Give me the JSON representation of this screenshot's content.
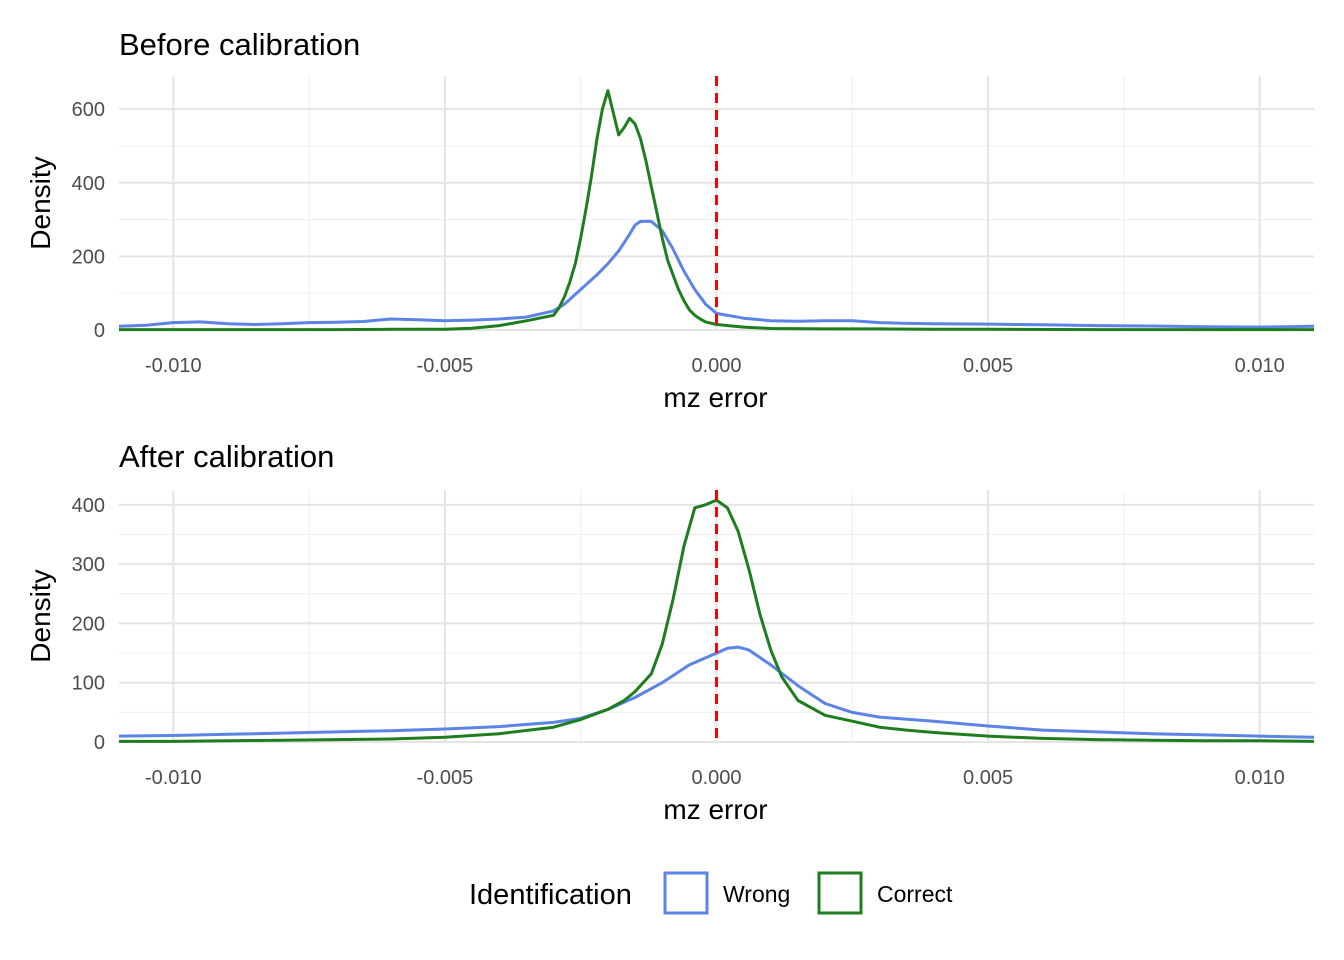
{
  "legend": {
    "title": "Identification",
    "items": [
      {
        "label": "Wrong",
        "color": "#5b84e6"
      },
      {
        "label": "Correct",
        "color": "#1e7d1e"
      }
    ]
  },
  "chart_data": [
    {
      "type": "line",
      "title": "Before calibration",
      "xlabel": "mz error",
      "ylabel": "Density",
      "xlim": [
        -0.011,
        0.011
      ],
      "ylim": [
        0,
        690
      ],
      "xticks": [
        -0.01,
        -0.005,
        0.0,
        0.005,
        0.01
      ],
      "xtick_labels": [
        "-0.010",
        "-0.005",
        "0.000",
        "0.005",
        "0.010"
      ],
      "yticks": [
        0,
        200,
        400,
        600
      ],
      "ytick_labels": [
        "0",
        "200",
        "400",
        "600"
      ],
      "grid": true,
      "reference_line": {
        "x": 0.0,
        "color": "#ff0000",
        "style": "dashed"
      },
      "series": [
        {
          "name": "Wrong",
          "color": "#5b84e6",
          "x": [
            -0.011,
            -0.0105,
            -0.01,
            -0.0095,
            -0.009,
            -0.0085,
            -0.008,
            -0.0075,
            -0.007,
            -0.0065,
            -0.006,
            -0.0055,
            -0.005,
            -0.0045,
            -0.004,
            -0.0035,
            -0.003,
            -0.0028,
            -0.0025,
            -0.0022,
            -0.002,
            -0.0018,
            -0.0016,
            -0.0015,
            -0.0014,
            -0.0012,
            -0.001,
            -0.0008,
            -0.0006,
            -0.0004,
            -0.0002,
            0.0,
            0.0005,
            0.001,
            0.0015,
            0.002,
            0.0025,
            0.003,
            0.0035,
            0.004,
            0.005,
            0.006,
            0.007,
            0.008,
            0.009,
            0.01,
            0.011
          ],
          "y": [
            10,
            13,
            20,
            22,
            17,
            15,
            17,
            20,
            21,
            23,
            30,
            28,
            25,
            27,
            30,
            35,
            52,
            70,
            110,
            150,
            180,
            215,
            260,
            285,
            295,
            295,
            270,
            220,
            160,
            110,
            70,
            45,
            32,
            25,
            24,
            25,
            25,
            20,
            18,
            17,
            16,
            14,
            12,
            11,
            9,
            8,
            10
          ]
        },
        {
          "name": "Correct",
          "color": "#1e7d1e",
          "x": [
            -0.011,
            -0.01,
            -0.009,
            -0.008,
            -0.007,
            -0.006,
            -0.005,
            -0.0045,
            -0.004,
            -0.0035,
            -0.003,
            -0.0029,
            -0.0028,
            -0.0027,
            -0.0026,
            -0.0025,
            -0.0024,
            -0.0023,
            -0.0022,
            -0.0021,
            -0.002,
            -0.0019,
            -0.0018,
            -0.0017,
            -0.0016,
            -0.0015,
            -0.0014,
            -0.0013,
            -0.0012,
            -0.0011,
            -0.001,
            -0.0009,
            -0.0008,
            -0.0007,
            -0.0006,
            -0.0005,
            -0.0004,
            -0.0003,
            -0.0002,
            0.0,
            0.0005,
            0.001,
            0.002,
            0.003,
            0.004,
            0.005,
            0.007,
            0.009,
            0.011
          ],
          "y": [
            1,
            1,
            1,
            1,
            1,
            2,
            2,
            5,
            12,
            25,
            40,
            60,
            90,
            130,
            180,
            250,
            330,
            420,
            520,
            600,
            650,
            590,
            530,
            550,
            575,
            560,
            520,
            460,
            390,
            320,
            250,
            190,
            150,
            110,
            80,
            55,
            40,
            30,
            22,
            15,
            8,
            4,
            3,
            3,
            2,
            2,
            1,
            1,
            1
          ]
        }
      ]
    },
    {
      "type": "line",
      "title": "After calibration",
      "xlabel": "mz error",
      "ylabel": "Density",
      "xlim": [
        -0.011,
        0.011
      ],
      "ylim": [
        0,
        425
      ],
      "xticks": [
        -0.01,
        -0.005,
        0.0,
        0.005,
        0.01
      ],
      "xtick_labels": [
        "-0.010",
        "-0.005",
        "0.000",
        "0.005",
        "0.010"
      ],
      "yticks": [
        0,
        100,
        200,
        300,
        400
      ],
      "ytick_labels": [
        "0",
        "100",
        "200",
        "300",
        "400"
      ],
      "grid": true,
      "reference_line": {
        "x": 0.0,
        "color": "#ff0000",
        "style": "dashed"
      },
      "series": [
        {
          "name": "Wrong",
          "color": "#5b84e6",
          "x": [
            -0.011,
            -0.01,
            -0.009,
            -0.008,
            -0.007,
            -0.006,
            -0.005,
            -0.004,
            -0.003,
            -0.0025,
            -0.002,
            -0.0015,
            -0.001,
            -0.0005,
            0.0,
            0.0002,
            0.0004,
            0.0006,
            0.001,
            0.0015,
            0.002,
            0.0025,
            0.003,
            0.004,
            0.005,
            0.006,
            0.007,
            0.008,
            0.009,
            0.01,
            0.011
          ],
          "y": [
            10,
            11,
            13,
            15,
            17,
            19,
            22,
            26,
            33,
            40,
            55,
            75,
            100,
            130,
            150,
            158,
            160,
            155,
            130,
            95,
            65,
            50,
            42,
            35,
            27,
            20,
            17,
            14,
            12,
            10,
            8
          ]
        },
        {
          "name": "Correct",
          "color": "#1e7d1e",
          "x": [
            -0.011,
            -0.01,
            -0.009,
            -0.008,
            -0.007,
            -0.006,
            -0.005,
            -0.004,
            -0.003,
            -0.0025,
            -0.002,
            -0.0017,
            -0.0015,
            -0.0012,
            -0.001,
            -0.0008,
            -0.0006,
            -0.0004,
            -0.0002,
            0.0,
            0.0002,
            0.0004,
            0.0006,
            0.0008,
            0.001,
            0.0012,
            0.0015,
            0.002,
            0.0025,
            0.003,
            0.0035,
            0.004,
            0.005,
            0.006,
            0.007,
            0.008,
            0.009,
            0.01,
            0.011
          ],
          "y": [
            1,
            1,
            2,
            3,
            4,
            5,
            8,
            14,
            25,
            38,
            55,
            70,
            85,
            115,
            165,
            240,
            330,
            395,
            400,
            408,
            395,
            355,
            290,
            215,
            155,
            110,
            70,
            45,
            35,
            25,
            20,
            16,
            10,
            6,
            4,
            3,
            2,
            2,
            1
          ]
        }
      ]
    }
  ]
}
